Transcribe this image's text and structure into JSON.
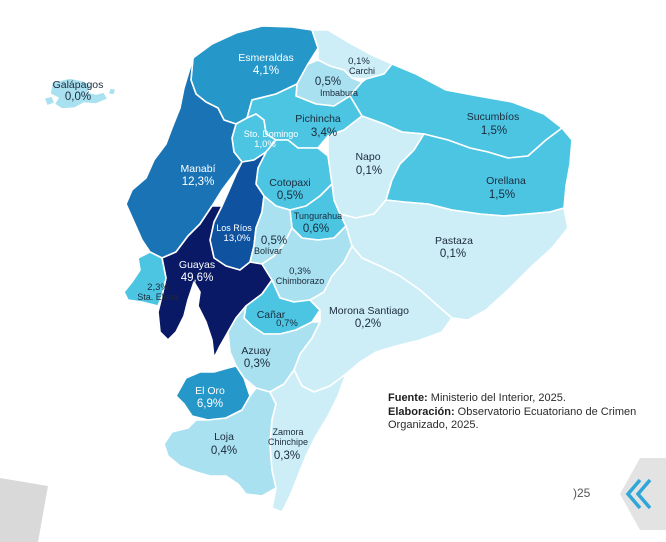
{
  "colors": {
    "lightest": "#cdeef7",
    "light": "#a9e1f0",
    "mid": "#4cc5e3",
    "strong": "#2597c9",
    "dark": "#1a73b5",
    "darker": "#0f53a0",
    "darkest": "#0a1966",
    "border": "#ffffff",
    "corner_gray": "#d9d9d9"
  },
  "provinces": {
    "galapagos": {
      "name": "Galápagos",
      "value": "0,0%"
    },
    "esmeraldas": {
      "name": "Esmeraldas",
      "value": "4,1%"
    },
    "carchi": {
      "name": "Carchi",
      "value": "0,1%"
    },
    "imbabura": {
      "name": "Imbabura",
      "value": "0,5%"
    },
    "sucumbios": {
      "name": "Sucumbíos",
      "value": "1,5%"
    },
    "pichincha": {
      "name": "Pichincha",
      "value": "3,4%"
    },
    "sto_domingo": {
      "name": "Sto. Domingo",
      "value": "1,0%"
    },
    "manabi": {
      "name": "Manabí",
      "value": "12,3%"
    },
    "napo": {
      "name": "Napo",
      "value": "0,1%"
    },
    "orellana": {
      "name": "Orellana",
      "value": "1,5%"
    },
    "cotopaxi": {
      "name": "Cotopaxi",
      "value": "0,5%"
    },
    "los_rios": {
      "name": "Los Ríos",
      "value": "13,0%"
    },
    "tungurahua": {
      "name": "Tungurahua",
      "value": "0,6%"
    },
    "bolivar": {
      "name": "Bolívar",
      "value": "0,5%"
    },
    "pastaza": {
      "name": "Pastaza",
      "value": "0,1%"
    },
    "guayas": {
      "name": "Guayas",
      "value": "49,6%"
    },
    "sta_elena": {
      "name": "Sta. Elena",
      "value": "2,3%"
    },
    "chimborazo": {
      "name": "Chimborazo",
      "value": "0,3%"
    },
    "canar": {
      "name": "Cañar",
      "value": "0,7%"
    },
    "morona_santiago": {
      "name": "Morona Santiago",
      "value": "0,2%"
    },
    "azuay": {
      "name": "Azuay",
      "value": "0,3%"
    },
    "el_oro": {
      "name": "El Oro",
      "value": "6,9%"
    },
    "loja": {
      "name": "Loja",
      "value": "0,4%"
    },
    "zamora_chinchipe": {
      "name_line1": "Zamora",
      "name_line2": "Chinchipe",
      "value": "0,3%"
    }
  },
  "source": {
    "fuente_label": "Fuente:",
    "fuente_text": " Ministerio del Interior, 2025.",
    "elaboracion_label": "Elaboración:",
    "elaboracion_text": " Observatorio Ecuatoriano de Crimen Organizado, 2025."
  },
  "page_number": ")25",
  "nav_icon": "double-chevron-left-icon"
}
